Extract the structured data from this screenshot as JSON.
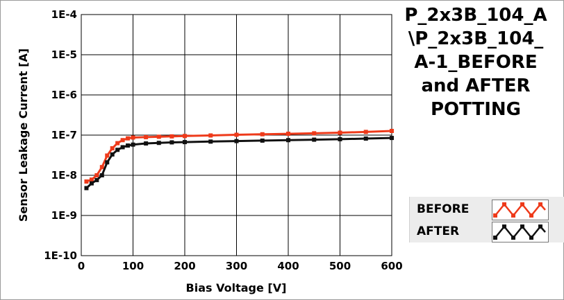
{
  "chart_data": {
    "type": "line",
    "title_lines": [
      "P_2x3B_104_A",
      "\\P_2x3B_104_",
      "A-1_BEFORE",
      "and AFTER",
      "POTTING"
    ],
    "xlabel": "Bias Voltage [V]",
    "ylabel": "Sensor Leakage Current [A]",
    "xlim": [
      0,
      600
    ],
    "ylim": [
      1e-10,
      0.0001
    ],
    "yscale": "log",
    "grid": true,
    "x_ticks": [
      0,
      100,
      200,
      300,
      400,
      500,
      600
    ],
    "x_tick_labels": [
      "0",
      "100",
      "200",
      "300",
      "400",
      "500",
      "600"
    ],
    "y_ticks": [
      1e-10,
      1e-09,
      1e-08,
      1e-07,
      1e-06,
      1e-05,
      0.0001
    ],
    "y_tick_labels": [
      "1E-10",
      "1E-9",
      "1E-8",
      "1E-7",
      "1E-6",
      "1E-5",
      "1E-4"
    ],
    "legend_position": "bottom-right",
    "series": [
      {
        "name": "BEFORE",
        "color": "#ee3a1a",
        "x": [
          10,
          20,
          30,
          40,
          50,
          60,
          70,
          80,
          90,
          100,
          125,
          150,
          175,
          200,
          250,
          300,
          350,
          400,
          450,
          500,
          550,
          600
        ],
        "y": [
          7e-09,
          7.8e-09,
          1e-08,
          1.6e-08,
          3.1e-08,
          4.7e-08,
          6.3e-08,
          7.5e-08,
          8.3e-08,
          8.7e-08,
          8.9e-08,
          9.1e-08,
          9.3e-08,
          9.5e-08,
          9.8e-08,
          1.02e-07,
          1.05e-07,
          1.08e-07,
          1.11e-07,
          1.15e-07,
          1.2e-07,
          1.27e-07
        ]
      },
      {
        "name": "AFTER",
        "color": "#111111",
        "x": [
          10,
          20,
          30,
          40,
          50,
          60,
          70,
          80,
          90,
          100,
          125,
          150,
          175,
          200,
          250,
          300,
          350,
          400,
          450,
          500,
          550,
          600
        ],
        "y": [
          4.8e-09,
          6.3e-09,
          7.6e-09,
          1e-08,
          2.1e-08,
          3.3e-08,
          4.3e-08,
          5e-08,
          5.5e-08,
          5.8e-08,
          6.2e-08,
          6.4e-08,
          6.6e-08,
          6.7e-08,
          6.9e-08,
          7.1e-08,
          7.3e-08,
          7.5e-08,
          7.7e-08,
          7.9e-08,
          8.2e-08,
          8.5e-08
        ]
      }
    ]
  }
}
